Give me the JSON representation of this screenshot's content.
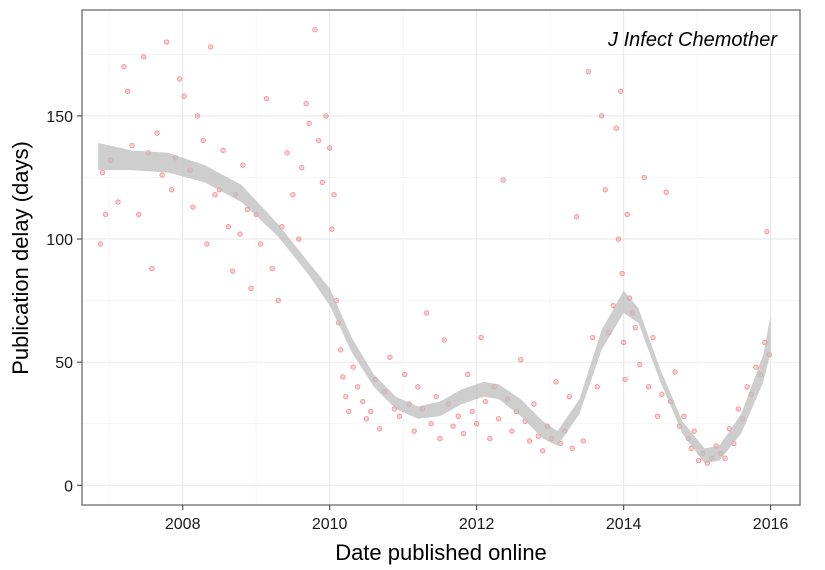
{
  "chart_data": {
    "type": "scatter",
    "title": "J Infect Chemother",
    "xlabel": "Date published online",
    "ylabel": "Publication delay (days)",
    "xlim": [
      2006.63,
      2016.4
    ],
    "ylim": [
      -8,
      193
    ],
    "x_ticks": [
      2008,
      2010,
      2012,
      2014,
      2016
    ],
    "y_ticks": [
      0,
      50,
      100,
      150
    ],
    "grid": true,
    "point_color": "#e8262a",
    "band_color": "#bdbdbd",
    "smooth": {
      "x": [
        2006.85,
        2007.3,
        2007.8,
        2008.3,
        2008.8,
        2009.3,
        2009.7,
        2010.0,
        2010.3,
        2010.6,
        2010.9,
        2011.2,
        2011.5,
        2011.8,
        2012.1,
        2012.3,
        2012.6,
        2012.9,
        2013.1,
        2013.4,
        2013.7,
        2014.0,
        2014.2,
        2014.5,
        2014.8,
        2015.1,
        2015.3,
        2015.6,
        2015.9,
        2016.0
      ],
      "lower": [
        128,
        128,
        127,
        123,
        115,
        101,
        86,
        73,
        54,
        40,
        31,
        27,
        28,
        33,
        36,
        35,
        28,
        19,
        16,
        29,
        55,
        70,
        66,
        42,
        21,
        9,
        10,
        21,
        42,
        54
      ],
      "upper": [
        139,
        136,
        135,
        130,
        122,
        106,
        91,
        80,
        60,
        45,
        36,
        32,
        34,
        39,
        42,
        41,
        35,
        26,
        22,
        35,
        63,
        79,
        72,
        47,
        26,
        15,
        16,
        29,
        53,
        69
      ]
    },
    "points": [
      [
        2006.91,
        127
      ],
      [
        2006.88,
        98
      ],
      [
        2006.95,
        110
      ],
      [
        2007.02,
        132
      ],
      [
        2007.12,
        115
      ],
      [
        2007.2,
        170
      ],
      [
        2007.25,
        160
      ],
      [
        2007.31,
        138
      ],
      [
        2007.4,
        110
      ],
      [
        2007.47,
        174
      ],
      [
        2007.53,
        135
      ],
      [
        2007.58,
        88
      ],
      [
        2007.65,
        143
      ],
      [
        2007.72,
        126
      ],
      [
        2007.78,
        180
      ],
      [
        2007.85,
        120
      ],
      [
        2007.9,
        133
      ],
      [
        2007.96,
        165
      ],
      [
        2008.02,
        158
      ],
      [
        2008.1,
        128
      ],
      [
        2008.14,
        113
      ],
      [
        2008.2,
        150
      ],
      [
        2008.28,
        140
      ],
      [
        2008.33,
        98
      ],
      [
        2008.38,
        178
      ],
      [
        2008.44,
        118
      ],
      [
        2008.5,
        120
      ],
      [
        2008.55,
        136
      ],
      [
        2008.62,
        105
      ],
      [
        2008.68,
        87
      ],
      [
        2008.72,
        118
      ],
      [
        2008.78,
        102
      ],
      [
        2008.82,
        130
      ],
      [
        2008.88,
        112
      ],
      [
        2008.93,
        80
      ],
      [
        2009.0,
        110
      ],
      [
        2009.06,
        98
      ],
      [
        2009.14,
        157
      ],
      [
        2009.22,
        88
      ],
      [
        2009.3,
        75
      ],
      [
        2009.35,
        105
      ],
      [
        2009.42,
        135
      ],
      [
        2009.5,
        118
      ],
      [
        2009.58,
        100
      ],
      [
        2009.62,
        129
      ],
      [
        2009.68,
        155
      ],
      [
        2009.72,
        147
      ],
      [
        2009.8,
        185
      ],
      [
        2009.85,
        140
      ],
      [
        2009.9,
        123
      ],
      [
        2009.95,
        150
      ],
      [
        2010.0,
        137
      ],
      [
        2010.03,
        104
      ],
      [
        2010.06,
        118
      ],
      [
        2010.09,
        75
      ],
      [
        2010.12,
        66
      ],
      [
        2010.15,
        55
      ],
      [
        2010.18,
        44
      ],
      [
        2010.22,
        36
      ],
      [
        2010.26,
        30
      ],
      [
        2010.32,
        48
      ],
      [
        2010.38,
        40
      ],
      [
        2010.45,
        34
      ],
      [
        2010.5,
        27
      ],
      [
        2010.56,
        30
      ],
      [
        2010.62,
        43
      ],
      [
        2010.68,
        23
      ],
      [
        2010.75,
        38
      ],
      [
        2010.82,
        52
      ],
      [
        2010.88,
        31
      ],
      [
        2010.95,
        28
      ],
      [
        2011.02,
        45
      ],
      [
        2011.08,
        33
      ],
      [
        2011.15,
        22
      ],
      [
        2011.2,
        40
      ],
      [
        2011.26,
        31
      ],
      [
        2011.32,
        70
      ],
      [
        2011.38,
        25
      ],
      [
        2011.45,
        36
      ],
      [
        2011.5,
        19
      ],
      [
        2011.56,
        59
      ],
      [
        2011.62,
        33
      ],
      [
        2011.68,
        24
      ],
      [
        2011.75,
        28
      ],
      [
        2011.82,
        21
      ],
      [
        2011.88,
        45
      ],
      [
        2011.94,
        30
      ],
      [
        2012.0,
        25
      ],
      [
        2012.06,
        60
      ],
      [
        2012.12,
        34
      ],
      [
        2012.18,
        19
      ],
      [
        2012.24,
        40
      ],
      [
        2012.3,
        27
      ],
      [
        2012.36,
        124
      ],
      [
        2012.42,
        35
      ],
      [
        2012.48,
        22
      ],
      [
        2012.54,
        30
      ],
      [
        2012.6,
        51
      ],
      [
        2012.66,
        26
      ],
      [
        2012.72,
        18
      ],
      [
        2012.78,
        33
      ],
      [
        2012.84,
        20
      ],
      [
        2012.9,
        14
      ],
      [
        2012.96,
        24
      ],
      [
        2013.02,
        19
      ],
      [
        2013.08,
        42
      ],
      [
        2013.14,
        17
      ],
      [
        2013.2,
        22
      ],
      [
        2013.26,
        36
      ],
      [
        2013.3,
        15
      ],
      [
        2013.36,
        109
      ],
      [
        2013.45,
        18
      ],
      [
        2013.52,
        168
      ],
      [
        2013.58,
        60
      ],
      [
        2013.64,
        40
      ],
      [
        2013.7,
        150
      ],
      [
        2013.75,
        120
      ],
      [
        2013.8,
        62
      ],
      [
        2013.86,
        73
      ],
      [
        2013.9,
        145
      ],
      [
        2013.93,
        100
      ],
      [
        2013.96,
        160
      ],
      [
        2013.98,
        86
      ],
      [
        2014.0,
        58
      ],
      [
        2014.02,
        43
      ],
      [
        2014.05,
        110
      ],
      [
        2014.08,
        76
      ],
      [
        2014.12,
        70
      ],
      [
        2014.16,
        64
      ],
      [
        2014.22,
        49
      ],
      [
        2014.28,
        125
      ],
      [
        2014.34,
        40
      ],
      [
        2014.4,
        60
      ],
      [
        2014.46,
        28
      ],
      [
        2014.52,
        37
      ],
      [
        2014.58,
        119
      ],
      [
        2014.64,
        34
      ],
      [
        2014.7,
        46
      ],
      [
        2014.76,
        24
      ],
      [
        2014.82,
        28
      ],
      [
        2014.88,
        19
      ],
      [
        2014.92,
        15
      ],
      [
        2014.96,
        22
      ],
      [
        2015.02,
        10
      ],
      [
        2015.08,
        13
      ],
      [
        2015.14,
        9
      ],
      [
        2015.2,
        11
      ],
      [
        2015.26,
        16
      ],
      [
        2015.32,
        13
      ],
      [
        2015.38,
        11
      ],
      [
        2015.44,
        23
      ],
      [
        2015.5,
        17
      ],
      [
        2015.56,
        31
      ],
      [
        2015.62,
        27
      ],
      [
        2015.68,
        40
      ],
      [
        2015.74,
        37
      ],
      [
        2015.8,
        48
      ],
      [
        2015.86,
        45
      ],
      [
        2015.92,
        58
      ],
      [
        2015.95,
        103
      ],
      [
        2015.98,
        53
      ]
    ]
  }
}
